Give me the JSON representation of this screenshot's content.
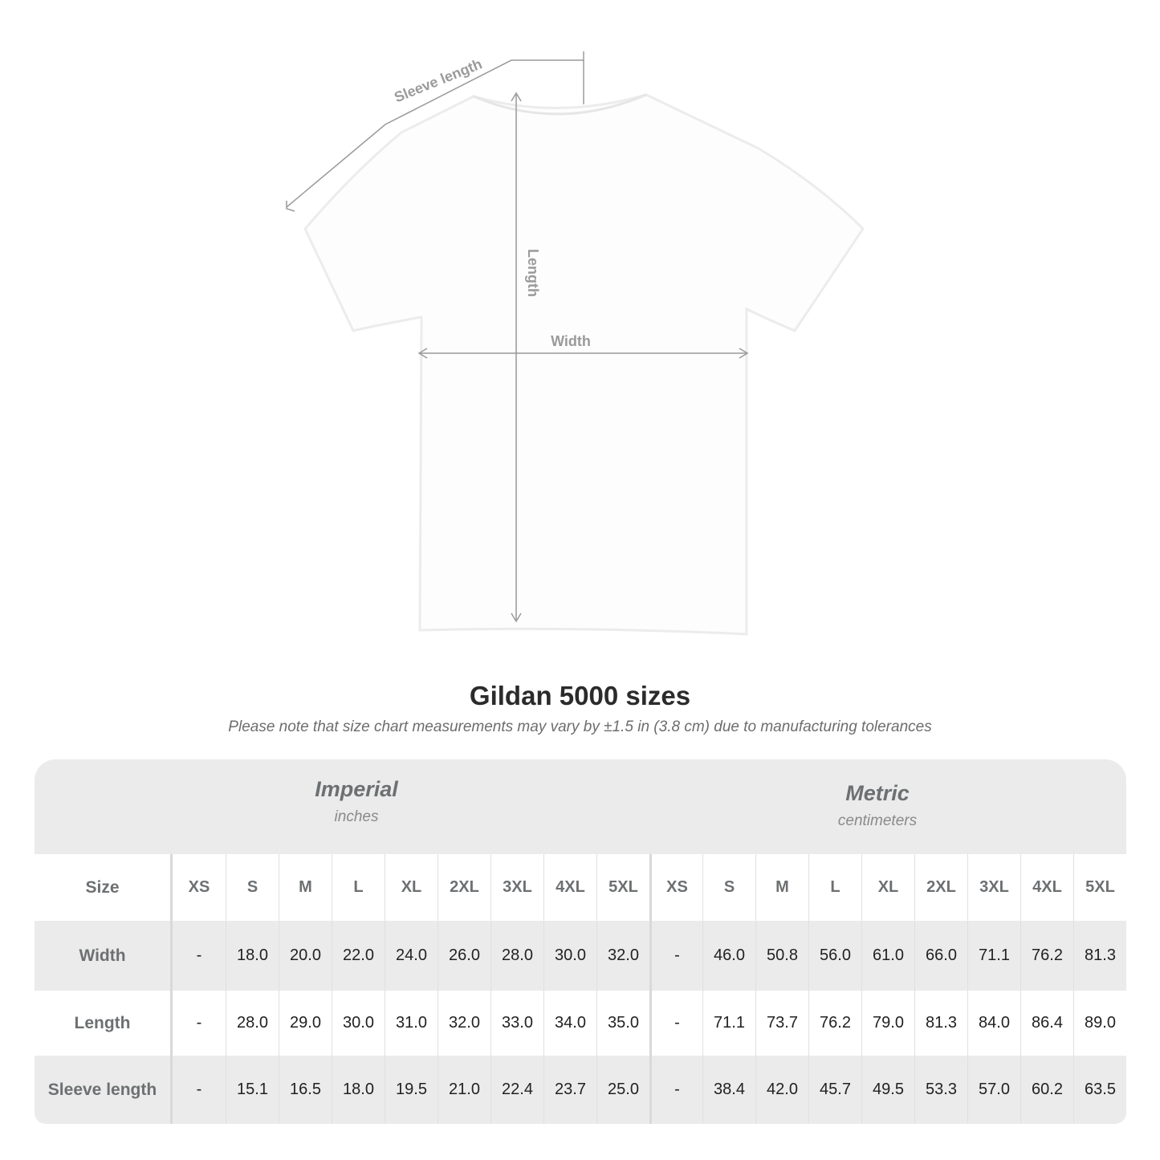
{
  "diagram": {
    "labels": {
      "sleeve_length": "Sleeve length",
      "length": "Length",
      "width": "Width"
    },
    "line_color": "#9a9a9a"
  },
  "title": "Gildan 5000 sizes",
  "subtitle": "Please note that size chart measurements may vary by ±1.5 in (3.8 cm) due to manufacturing tolerances",
  "table": {
    "imperial": {
      "name": "Imperial",
      "unit": "inches"
    },
    "metric": {
      "name": "Metric",
      "unit": "centimeters"
    },
    "size_label": "Size",
    "sizes": [
      "XS",
      "S",
      "M",
      "L",
      "XL",
      "2XL",
      "3XL",
      "4XL",
      "5XL"
    ],
    "rows": [
      {
        "label": "Width",
        "imperial": [
          "-",
          "18.0",
          "20.0",
          "22.0",
          "24.0",
          "26.0",
          "28.0",
          "30.0",
          "32.0"
        ],
        "metric": [
          "-",
          "46.0",
          "50.8",
          "56.0",
          "61.0",
          "66.0",
          "71.1",
          "76.2",
          "81.3"
        ]
      },
      {
        "label": "Length",
        "imperial": [
          "-",
          "28.0",
          "29.0",
          "30.0",
          "31.0",
          "32.0",
          "33.0",
          "34.0",
          "35.0"
        ],
        "metric": [
          "-",
          "71.1",
          "73.7",
          "76.2",
          "79.0",
          "81.3",
          "84.0",
          "86.4",
          "89.0"
        ]
      },
      {
        "label": "Sleeve length",
        "imperial": [
          "-",
          "15.1",
          "16.5",
          "18.0",
          "19.5",
          "21.0",
          "22.4",
          "23.7",
          "25.0"
        ],
        "metric": [
          "-",
          "38.4",
          "42.0",
          "45.7",
          "49.5",
          "53.3",
          "57.0",
          "60.2",
          "63.5"
        ]
      }
    ]
  }
}
